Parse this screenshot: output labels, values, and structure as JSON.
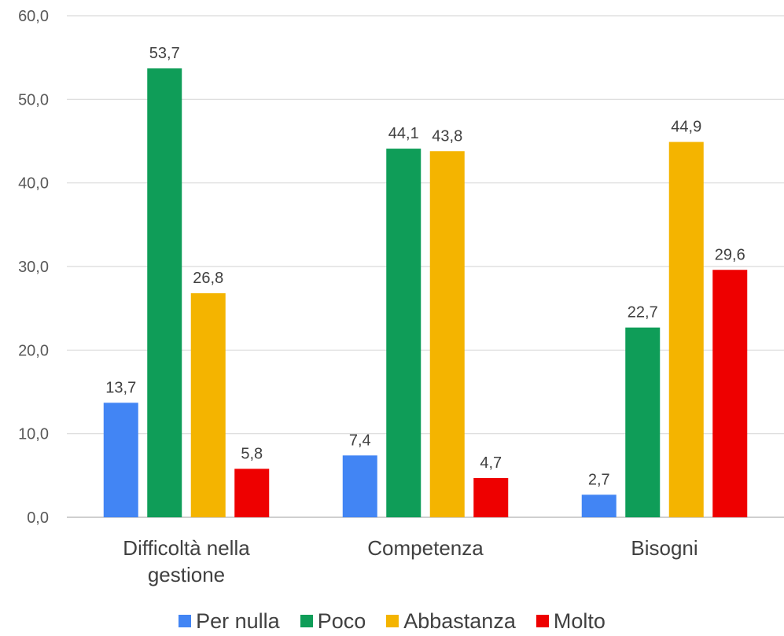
{
  "chart_data": {
    "type": "bar",
    "categories": [
      [
        "Difficoltà nella",
        "gestione"
      ],
      [
        "Competenza"
      ],
      [
        "Bisogni"
      ]
    ],
    "series": [
      {
        "name": "Per nulla",
        "color": "#4285F4",
        "values": [
          13.7,
          7.4,
          2.7
        ]
      },
      {
        "name": "Poco",
        "color": "#0F9D58",
        "values": [
          53.7,
          44.1,
          22.7
        ]
      },
      {
        "name": "Abbastanza",
        "color": "#F4B400",
        "values": [
          26.8,
          43.8,
          44.9
        ]
      },
      {
        "name": "Molto",
        "color": "#EE0000",
        "values": [
          5.8,
          4.7,
          29.6
        ]
      }
    ],
    "ylim": [
      0,
      60
    ],
    "yticks": [
      "0,0",
      "10,0",
      "20,0",
      "30,0",
      "40,0",
      "50,0",
      "60,0"
    ],
    "data_labels": [
      [
        "13,7",
        "7,4",
        "2,7"
      ],
      [
        "53,7",
        "44,1",
        "22,7"
      ],
      [
        "26,8",
        "43,8",
        "44,9"
      ],
      [
        "5,8",
        "4,7",
        "29,6"
      ]
    ],
    "grid": true,
    "legend_position": "bottom"
  }
}
